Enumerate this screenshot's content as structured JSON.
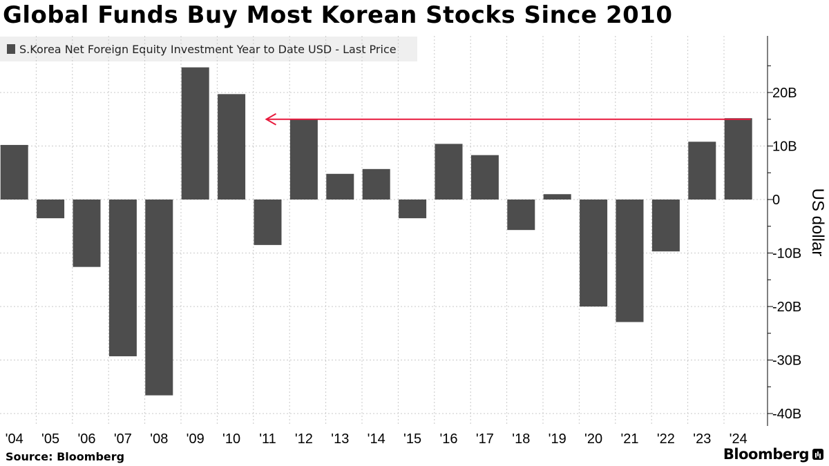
{
  "header": {
    "title": "Global Funds Buy Most Korean Stocks Since 2010"
  },
  "legend": {
    "label": "S.Korea Net Foreign Equity Investment Year to Date USD - Last Price",
    "swatch_color": "#4d4d4d"
  },
  "footer": {
    "source": "Source: Bloomberg",
    "brand": "Bloomberg"
  },
  "chart_data": {
    "type": "bar",
    "title": "Global Funds Buy Most Korean Stocks Since 2010",
    "categories": [
      "'04",
      "'05",
      "'06",
      "'07",
      "'08",
      "'09",
      "'10",
      "'11",
      "'12",
      "'13",
      "'14",
      "'15",
      "'16",
      "'17",
      "'18",
      "'19",
      "'20",
      "'21",
      "'22",
      "'23",
      "'24"
    ],
    "series": [
      {
        "name": "S.Korea Net Foreign Equity Investment Year to Date USD - Last Price",
        "unit": "B",
        "values": [
          10.2,
          -3.5,
          -12.6,
          -29.3,
          -36.6,
          24.7,
          19.7,
          -8.5,
          15.0,
          4.8,
          5.7,
          -3.5,
          10.4,
          8.3,
          -5.7,
          1.0,
          -20.0,
          -22.9,
          -9.7,
          10.8,
          15.2
        ],
        "color": "#4d4d4d"
      }
    ],
    "ylabel": "US dollar",
    "ylim": [
      -42.5,
      30.5
    ],
    "yticks": [
      20,
      10,
      0,
      -10,
      -20,
      -30,
      -40
    ],
    "ytick_labels": [
      "20B",
      "10B",
      "0",
      "-10B",
      "-20B",
      "-30B",
      "-40B"
    ],
    "y_axis_position": "right",
    "grid": true,
    "annotation": {
      "type": "arrow",
      "value": 15.2,
      "from_category": "'24",
      "to_category": "'11",
      "color": "#e8193c"
    }
  }
}
